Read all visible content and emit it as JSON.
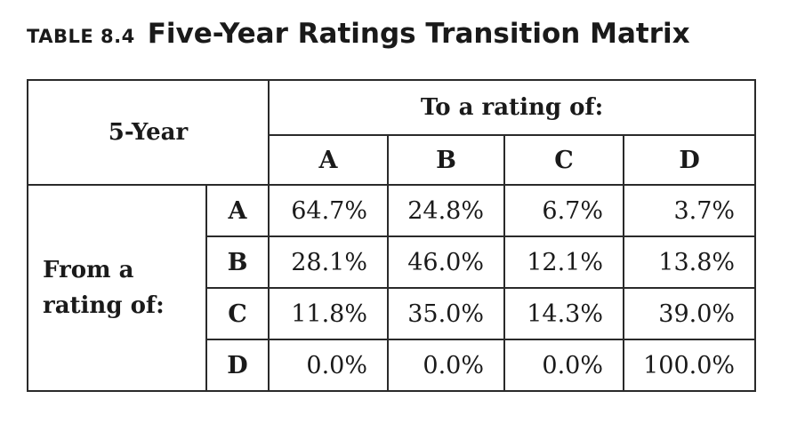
{
  "title": {
    "label": "TABLE 8.4",
    "text": "Five-Year Ratings Transition Matrix"
  },
  "table": {
    "corner": "5-Year",
    "to_header": "To a rating of:",
    "columns": [
      "A",
      "B",
      "C",
      "D"
    ],
    "from_header_line1": "From a",
    "from_header_line2": "rating of:",
    "rows": [
      {
        "label": "A",
        "values": [
          "64.7%",
          "24.8%",
          "6.7%",
          "3.7%"
        ]
      },
      {
        "label": "B",
        "values": [
          "28.1%",
          "46.0%",
          "12.1%",
          "13.8%"
        ]
      },
      {
        "label": "C",
        "values": [
          "11.8%",
          "35.0%",
          "14.3%",
          "39.0%"
        ]
      },
      {
        "label": "D",
        "values": [
          "0.0%",
          "0.0%",
          "0.0%",
          "100.0%"
        ]
      }
    ]
  }
}
